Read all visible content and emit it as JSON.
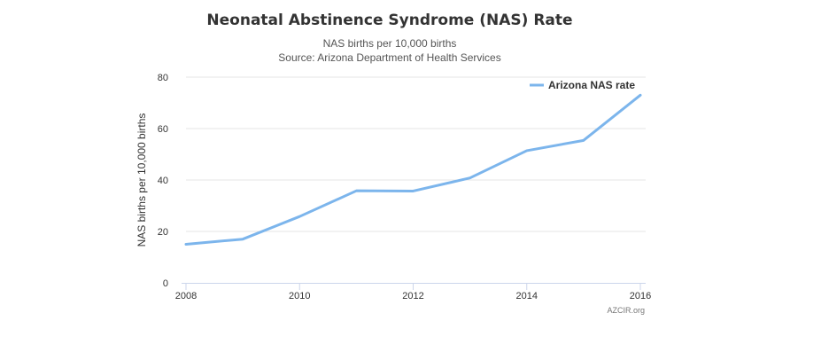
{
  "chart_data": {
    "type": "line",
    "title": "Neonatal Abstinence Syndrome (NAS) Rate",
    "subtitle_lines": [
      "NAS births per 10,000 births",
      "Source: Arizona Department of Health Services"
    ],
    "xlabel": "",
    "ylabel": "NAS births per 10,000 births",
    "x": [
      2008,
      2009,
      2010,
      2011,
      2012,
      2013,
      2014,
      2015,
      2016
    ],
    "x_ticks": [
      2008,
      2010,
      2012,
      2014,
      2016
    ],
    "y_ticks": [
      0,
      20,
      40,
      60,
      80
    ],
    "ylim": [
      0,
      80
    ],
    "xlim": [
      2008,
      2016
    ],
    "series": [
      {
        "name": "Arizona NAS rate",
        "color": "#7cb5ec",
        "values": [
          15.0,
          17.0,
          25.8,
          35.8,
          35.7,
          40.8,
          51.4,
          55.4,
          73.0
        ]
      }
    ],
    "legend_position": "top-right",
    "grid": "horizontal",
    "credit": "AZCIR.org"
  }
}
